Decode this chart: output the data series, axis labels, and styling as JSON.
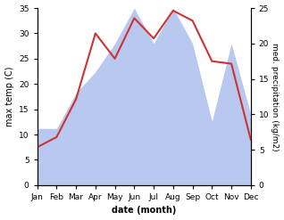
{
  "months": [
    "Jan",
    "Feb",
    "Mar",
    "Apr",
    "May",
    "Jun",
    "Jul",
    "Aug",
    "Sep",
    "Oct",
    "Nov",
    "Dec"
  ],
  "x": [
    1,
    2,
    3,
    4,
    5,
    6,
    7,
    8,
    9,
    10,
    11,
    12
  ],
  "temperature": [
    7.5,
    9.5,
    17.0,
    30.0,
    25.0,
    33.0,
    29.0,
    34.5,
    32.5,
    24.5,
    24.0,
    9.0
  ],
  "precipitation": [
    8,
    8,
    13,
    16,
    20,
    25,
    20,
    25,
    20,
    9,
    20,
    10
  ],
  "temp_color": "#cc3333",
  "precip_color": "#b8c8ee",
  "ylim_temp": [
    0,
    35
  ],
  "ylim_precip": [
    0,
    25
  ],
  "yticks_temp": [
    0,
    5,
    10,
    15,
    20,
    25,
    30,
    35
  ],
  "yticks_precip": [
    0,
    5,
    10,
    15,
    20,
    25
  ],
  "xlabel": "date (month)",
  "ylabel_left": "max temp (C)",
  "ylabel_right": "med. precipitation (kg/m2)",
  "background_color": "#ffffff",
  "label_fontsize": 7,
  "tick_fontsize": 6.5
}
